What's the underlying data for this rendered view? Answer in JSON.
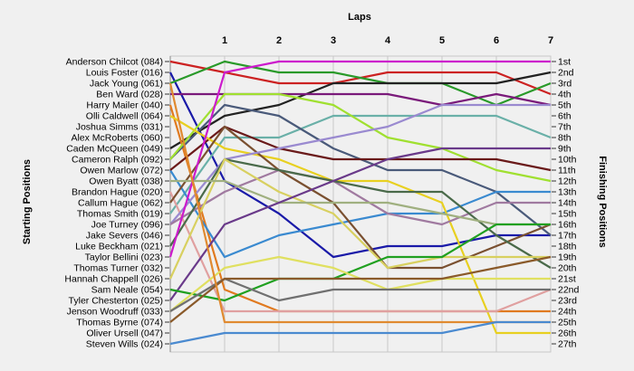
{
  "chart_data": {
    "type": "line",
    "chart_subtype": "bump",
    "title": "Laps",
    "ylabel_left": "Starting Positions",
    "ylabel_right": "Finishing Positions",
    "x_ticks": [
      "1",
      "2",
      "3",
      "4",
      "5",
      "6",
      "7"
    ],
    "x": [
      0,
      1,
      2,
      3,
      4,
      5,
      6,
      7
    ],
    "starting_labels": [
      "Anderson Chilcot (084)",
      "Louis Foster (016)",
      "Jack Young (061)",
      "Ben Ward (028)",
      "Harry Mailer (040)",
      "Olli Caldwell (064)",
      "Joshua Simms (031)",
      "Alex McRoberts (060)",
      "Caden McQueen (049)",
      "Cameron Ralph (092)",
      "Owen Marlow (072)",
      "Owen Byatt (038)",
      "Brandon Hague (020)",
      "Callum Hague (062)",
      "Thomas Smith (019)",
      "Joe Turney (096)",
      "Jake Severs (046)",
      "Luke Beckham (021)",
      "Taylor Bellini (023)",
      "Thomas Turner (032)",
      "Hannah Chappell (026)",
      "Sam Neale (054)",
      "Tyler Chesterton (025)",
      "Jenson Woodruff (033)",
      "Thomas Byrne (074)",
      "Oliver Ursell (047)",
      "Steven Wills (024)"
    ],
    "finishing_labels": [
      "1st",
      "2nd",
      "3rd",
      "4th",
      "5th",
      "6th",
      "7th",
      "8th",
      "9th",
      "10th",
      "11th",
      "12th",
      "13th",
      "14th",
      "15th",
      "16th",
      "17th",
      "18th",
      "19th",
      "20th",
      "21st",
      "22nd",
      "23rd",
      "24th",
      "25th",
      "26th",
      "27th"
    ],
    "y_range": [
      1,
      27
    ],
    "y_inverted": true,
    "grid": {
      "vertical": true,
      "horizontal": false
    },
    "series": [
      {
        "color": "#cc2222",
        "values": [
          1,
          2,
          3,
          3,
          2,
          2,
          2,
          4
        ]
      },
      {
        "color": "#1a1aa8",
        "values": [
          2,
          12,
          15,
          19,
          18,
          18,
          17,
          17
        ]
      },
      {
        "color": "#2a9a2a",
        "values": [
          3,
          1,
          2,
          2,
          3,
          3,
          5,
          3
        ]
      },
      {
        "color": "#222222",
        "values": [
          9,
          6,
          5,
          3,
          3,
          3,
          3,
          2
        ]
      },
      {
        "color": "#7a1a7a",
        "values": [
          4,
          4,
          4,
          4,
          4,
          5,
          4,
          5
        ]
      },
      {
        "color": "#e07a20",
        "values": [
          5,
          22,
          24,
          24,
          24,
          24,
          24,
          24
        ]
      },
      {
        "color": "#6ab0a8",
        "values": [
          15,
          8,
          8,
          6,
          6,
          6,
          6,
          8
        ]
      },
      {
        "color": "#4a5a7a",
        "values": [
          10,
          5,
          6,
          9,
          11,
          11,
          13,
          17
        ]
      },
      {
        "color": "#3a8ad0",
        "values": [
          11,
          19,
          17,
          16,
          15,
          15,
          13,
          13
        ]
      },
      {
        "color": "#a0e030",
        "values": [
          10,
          4,
          4,
          5,
          8,
          9,
          11,
          12
        ]
      },
      {
        "color": "#6a1a1a",
        "values": [
          11,
          7,
          9,
          10,
          10,
          10,
          10,
          11
        ]
      },
      {
        "color": "#e8d020",
        "values": [
          6,
          9,
          10,
          12,
          12,
          14,
          26,
          26
        ]
      },
      {
        "color": "#e0a0a0",
        "values": [
          13,
          24,
          24,
          24,
          24,
          24,
          24,
          22
        ]
      },
      {
        "color": "#7a5030",
        "values": [
          14,
          7,
          11,
          14,
          20,
          20,
          18,
          16
        ]
      },
      {
        "color": "#9a8ad0",
        "values": [
          16,
          10,
          9,
          8,
          7,
          5,
          5,
          5
        ]
      },
      {
        "color": "#a07aa0",
        "values": [
          16,
          13,
          11,
          12,
          15,
          16,
          14,
          14
        ]
      },
      {
        "color": "#4a6a4a",
        "values": [
          18,
          10,
          11,
          12,
          13,
          13,
          17,
          20
        ]
      },
      {
        "color": "#d8d060",
        "values": [
          21,
          10,
          13,
          15,
          20,
          19,
          19,
          19
        ]
      },
      {
        "color": "#a0b080",
        "values": [
          12,
          12,
          14,
          14,
          14,
          15,
          16,
          16
        ]
      },
      {
        "color": "#6a3a8a",
        "values": [
          23,
          16,
          14,
          12,
          10,
          9,
          9,
          9
        ]
      },
      {
        "color": "#20a020",
        "values": [
          22,
          23,
          21,
          21,
          19,
          19,
          16,
          16
        ]
      },
      {
        "color": "#e0e060",
        "values": [
          24,
          20,
          19,
          20,
          22,
          21,
          21,
          21
        ]
      },
      {
        "color": "#cc1acc",
        "values": [
          19,
          2,
          1,
          1,
          1,
          1,
          1,
          1
        ]
      },
      {
        "color": "#707070",
        "values": [
          24,
          21,
          23,
          22,
          22,
          22,
          22,
          22
        ]
      },
      {
        "color": "#8a5a2a",
        "values": [
          25,
          21,
          21,
          21,
          21,
          21,
          20,
          19
        ]
      },
      {
        "color": "#e08a30",
        "values": [
          3,
          25,
          25,
          25,
          25,
          25,
          25,
          25
        ]
      },
      {
        "color": "#4a8ad0",
        "values": [
          27,
          26,
          26,
          26,
          26,
          26,
          25,
          25
        ]
      }
    ]
  }
}
